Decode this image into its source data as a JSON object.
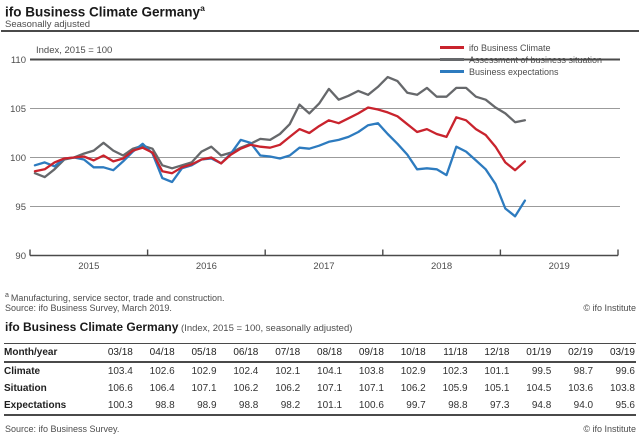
{
  "header": {
    "title": "ifo Business Climate Germany",
    "sup": "a",
    "subtitle": "Seasonally adjusted"
  },
  "chart_data": {
    "type": "line",
    "title": "ifo Business Climate Germany",
    "ylabel": "Index, 2015 = 100",
    "ylim": [
      90,
      110
    ],
    "ytick_labels": [
      "110",
      "105",
      "100",
      "95",
      "90"
    ],
    "x_year_labels": [
      "2015",
      "2016",
      "2017",
      "2018",
      "2019"
    ],
    "x_start": "01/2015",
    "x_end": "03/2019",
    "frequency": "monthly",
    "legend_position": "top-right",
    "grid": true,
    "series": [
      {
        "name": "ifo Business Climate",
        "id": "climate",
        "color": "#c9232d",
        "values": [
          98.6,
          98.8,
          99.5,
          99.9,
          100.0,
          100.1,
          99.7,
          100.2,
          99.6,
          99.9,
          100.7,
          101.0,
          100.5,
          98.6,
          98.4,
          99.0,
          99.3,
          99.8,
          100.0,
          99.4,
          100.3,
          100.9,
          101.3,
          101.1,
          101.0,
          101.3,
          102.1,
          102.9,
          102.5,
          103.2,
          103.8,
          103.5,
          104.0,
          104.5,
          105.1,
          104.9,
          104.6,
          104.2,
          103.4,
          102.6,
          102.9,
          102.4,
          102.1,
          104.1,
          103.8,
          102.9,
          102.3,
          101.1,
          99.5,
          98.7,
          99.6
        ]
      },
      {
        "name": "Assessment of business situation",
        "id": "situation",
        "color": "#66686b",
        "values": [
          98.4,
          98.0,
          98.8,
          99.8,
          100.0,
          100.4,
          100.7,
          101.5,
          100.7,
          100.2,
          100.9,
          101.2,
          100.9,
          99.2,
          98.9,
          99.2,
          99.5,
          100.6,
          101.1,
          100.2,
          100.5,
          101.0,
          101.4,
          101.9,
          101.8,
          102.4,
          103.4,
          105.4,
          104.5,
          105.5,
          107.0,
          105.9,
          106.3,
          106.8,
          106.4,
          107.2,
          108.2,
          107.8,
          106.6,
          106.4,
          107.1,
          106.2,
          106.2,
          107.1,
          107.1,
          106.2,
          105.9,
          105.1,
          104.5,
          103.6,
          103.8
        ]
      },
      {
        "name": "Business expectations",
        "id": "expectations",
        "color": "#2d7bbf",
        "values": [
          99.2,
          99.5,
          99.1,
          99.9,
          100.0,
          99.8,
          99.0,
          99.0,
          98.7,
          99.6,
          100.6,
          101.4,
          100.4,
          97.9,
          97.5,
          98.9,
          99.2,
          99.8,
          99.9,
          99.4,
          100.4,
          101.8,
          101.5,
          100.2,
          100.1,
          99.9,
          100.2,
          101.0,
          100.9,
          101.2,
          101.6,
          101.8,
          102.1,
          102.6,
          103.3,
          103.5,
          102.4,
          101.4,
          100.3,
          98.8,
          98.9,
          98.8,
          98.2,
          101.1,
          100.6,
          99.7,
          98.8,
          97.3,
          94.8,
          94.0,
          95.6
        ]
      }
    ]
  },
  "chart_notes": {
    "footnote_sup": "a",
    "footnote_text": "Manufacturing, service sector, trade and construction.",
    "source": "Source: ifo Business Survey, March 2019.",
    "copyright": "© ifo Institute"
  },
  "table": {
    "title": "ifo Business Climate Germany",
    "title_suffix": " (Index, 2015 = 100, seasonally adjusted)",
    "columns": [
      "Month/year",
      "03/18",
      "04/18",
      "05/18",
      "06/18",
      "07/18",
      "08/18",
      "09/18",
      "10/18",
      "11/18",
      "12/18",
      "01/19",
      "02/19",
      "03/19"
    ],
    "rows": [
      {
        "label": "Climate",
        "values": [
          "103.4",
          "102.6",
          "102.9",
          "102.4",
          "102.1",
          "104.1",
          "103.8",
          "102.9",
          "102.3",
          "101.1",
          "99.5",
          "98.7",
          "99.6"
        ]
      },
      {
        "label": "Situation",
        "values": [
          "106.6",
          "106.4",
          "107.1",
          "106.2",
          "106.2",
          "107.1",
          "107.1",
          "106.2",
          "105.9",
          "105.1",
          "104.5",
          "103.6",
          "103.8"
        ]
      },
      {
        "label": "Expectations",
        "values": [
          "100.3",
          "98.8",
          "98.9",
          "98.8",
          "98.2",
          "101.1",
          "100.6",
          "99.7",
          "98.8",
          "97.3",
          "94.8",
          "94.0",
          "95.6"
        ]
      }
    ],
    "source": "Source: ifo Business Survey.",
    "copyright": "© ifo Institute"
  }
}
